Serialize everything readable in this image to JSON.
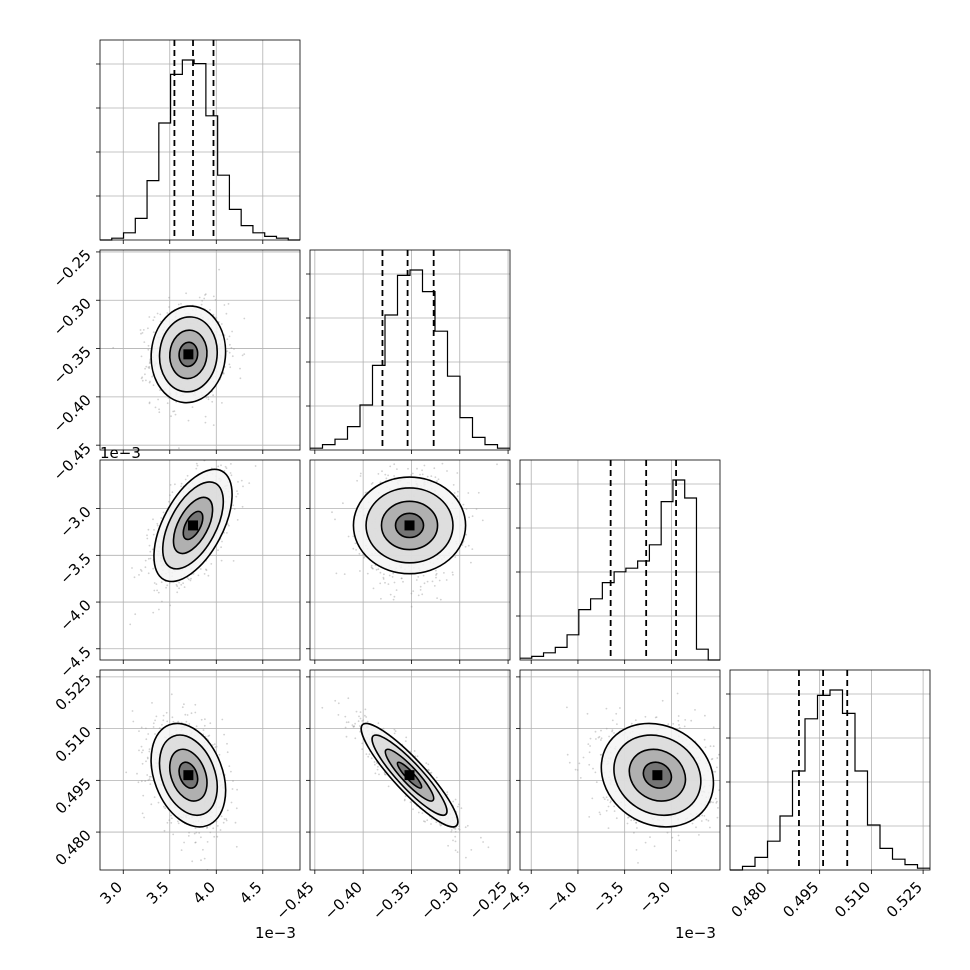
{
  "chart_data": {
    "type": "corner",
    "grid": true,
    "parameters": [
      {
        "range": [
          2.75,
          4.9
        ],
        "offset_text": "1e−3",
        "ticks": [
          3.0,
          3.5,
          4.0,
          4.5
        ],
        "tick_labels": [
          "3.0",
          "3.5",
          "4.0",
          "4.5"
        ],
        "quantiles": [
          3.55,
          3.75,
          3.97
        ],
        "histogram": [
          0.0,
          0.01,
          0.04,
          0.12,
          0.33,
          0.65,
          0.92,
          1.0,
          0.98,
          0.69,
          0.36,
          0.17,
          0.08,
          0.04,
          0.02,
          0.01,
          0.0
        ]
      },
      {
        "range": [
          -0.455,
          -0.248
        ],
        "offset_text": "",
        "ticks": [
          -0.45,
          -0.4,
          -0.35,
          -0.3,
          -0.25
        ],
        "tick_labels": [
          "−0.45",
          "−0.40",
          "−0.35",
          "−0.30",
          "−0.25"
        ],
        "quantiles": [
          -0.38,
          -0.354,
          -0.327
        ],
        "histogram": [
          0.01,
          0.03,
          0.06,
          0.13,
          0.25,
          0.47,
          0.75,
          0.97,
          1.0,
          0.88,
          0.66,
          0.41,
          0.18,
          0.07,
          0.03,
          0.01
        ]
      },
      {
        "range": [
          -4.62,
          -2.48
        ],
        "offset_text": "1e−3",
        "ticks": [
          -4.5,
          -4.0,
          -3.5,
          -3.0
        ],
        "tick_labels": [
          "−4.5",
          "−4.0",
          "−3.5",
          "−3.0"
        ],
        "quantiles": [
          -3.65,
          -3.27,
          -2.95
        ],
        "histogram": [
          0.01,
          0.02,
          0.04,
          0.07,
          0.14,
          0.28,
          0.34,
          0.43,
          0.49,
          0.51,
          0.55,
          0.64,
          0.88,
          1.0,
          0.9,
          0.06,
          0.0
        ]
      },
      {
        "range": [
          0.469,
          0.527
        ],
        "offset_text": "",
        "ticks": [
          0.48,
          0.495,
          0.51,
          0.525
        ],
        "tick_labels": [
          "0.480",
          "0.495",
          "0.510",
          "0.525"
        ],
        "quantiles": [
          0.489,
          0.496,
          0.503
        ],
        "histogram": [
          0.0,
          0.02,
          0.07,
          0.16,
          0.3,
          0.55,
          0.84,
          0.97,
          1.0,
          0.87,
          0.55,
          0.25,
          0.12,
          0.06,
          0.03,
          0.01
        ]
      }
    ],
    "pairs": [
      {
        "row": 1,
        "col": 0,
        "mean": [
          3.7,
          -0.356
        ],
        "sigma": [
          0.2,
          0.025
        ],
        "rho": 0.05
      },
      {
        "row": 2,
        "col": 0,
        "mean": [
          3.75,
          -3.18
        ],
        "sigma": [
          0.21,
          0.3
        ],
        "rho": 0.55
      },
      {
        "row": 2,
        "col": 1,
        "mean": [
          -0.352,
          -3.18
        ],
        "sigma": [
          0.025,
          0.3
        ],
        "rho": 0.0
      },
      {
        "row": 3,
        "col": 0,
        "mean": [
          3.7,
          0.4965
        ],
        "sigma": [
          0.2,
          0.0075
        ],
        "rho": -0.3
      },
      {
        "row": 3,
        "col": 1,
        "mean": [
          -0.352,
          0.4965
        ],
        "sigma": [
          0.025,
          0.0075
        ],
        "rho": -0.9
      },
      {
        "row": 3,
        "col": 2,
        "mean": [
          -3.15,
          0.4965
        ],
        "sigma": [
          0.3,
          0.0075
        ],
        "rho": -0.15
      }
    ]
  }
}
